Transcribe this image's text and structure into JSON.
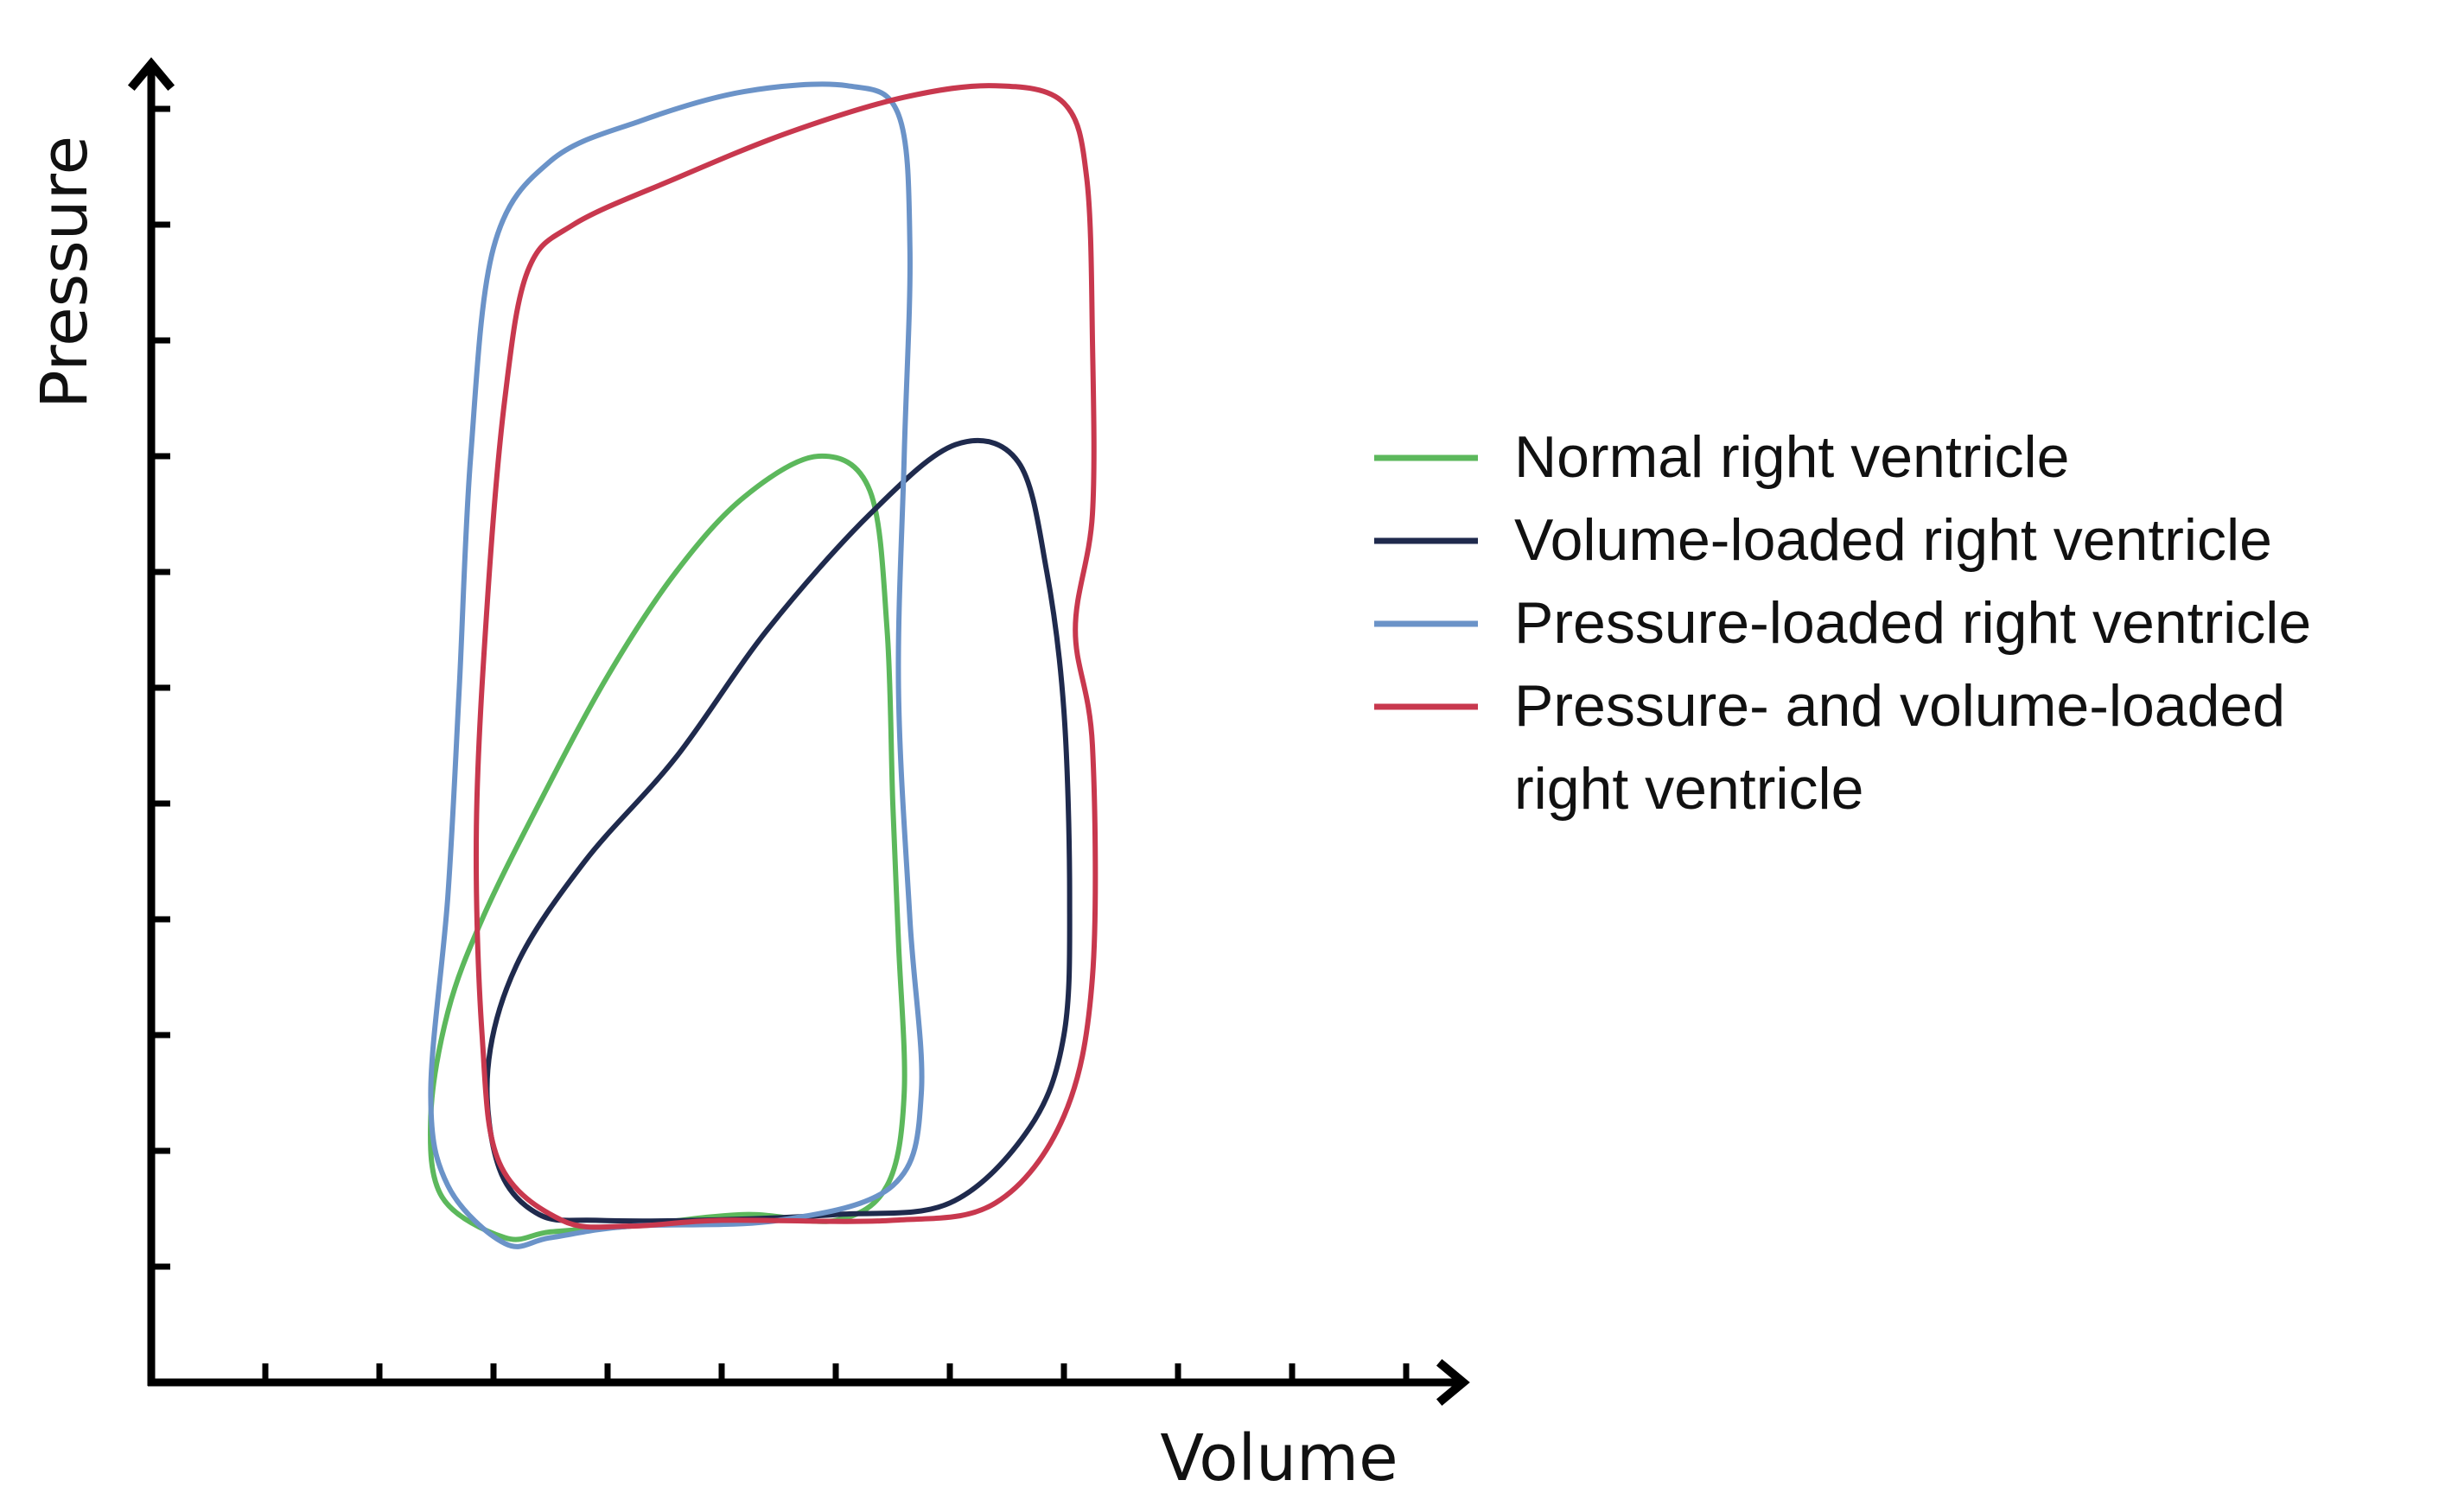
{
  "chart_data": {
    "type": "line",
    "title": "",
    "xlabel": "Volume",
    "ylabel": "Pressure",
    "xlim": [
      0,
      11
    ],
    "ylim": [
      0,
      11
    ],
    "x_ticks": 11,
    "y_ticks": 11,
    "tick_labels": false,
    "grid": false,
    "legend_position": "right",
    "series": [
      {
        "name": "Normal right ventricle",
        "color": "#5cb85c",
        "closed": true,
        "points": [
          [
            3.1,
            1.25
          ],
          [
            2.55,
            1.6
          ],
          [
            2.45,
            2.3
          ],
          [
            2.6,
            3.2
          ],
          [
            2.9,
            4.0
          ],
          [
            3.4,
            5.0
          ],
          [
            4.0,
            6.1
          ],
          [
            4.6,
            7.0
          ],
          [
            5.2,
            7.65
          ],
          [
            5.85,
            8.0
          ],
          [
            6.3,
            7.7
          ],
          [
            6.45,
            6.5
          ],
          [
            6.5,
            5.0
          ],
          [
            6.55,
            3.8
          ],
          [
            6.6,
            2.5
          ],
          [
            6.45,
            1.7
          ],
          [
            6.0,
            1.4
          ],
          [
            5.2,
            1.45
          ],
          [
            4.2,
            1.35
          ],
          [
            3.5,
            1.3
          ]
        ]
      },
      {
        "name": "Volume-loaded right ventricle",
        "color": "#1f2a4d",
        "closed": true,
        "points": [
          [
            3.4,
            1.45
          ],
          [
            3.05,
            1.85
          ],
          [
            2.95,
            2.7
          ],
          [
            3.2,
            3.6
          ],
          [
            3.8,
            4.5
          ],
          [
            4.6,
            5.4
          ],
          [
            5.4,
            6.5
          ],
          [
            6.3,
            7.5
          ],
          [
            7.05,
            8.1
          ],
          [
            7.6,
            7.95
          ],
          [
            7.85,
            7.0
          ],
          [
            8.0,
            5.8
          ],
          [
            8.05,
            4.2
          ],
          [
            8.0,
            3.0
          ],
          [
            7.7,
            2.2
          ],
          [
            7.0,
            1.55
          ],
          [
            6.0,
            1.45
          ],
          [
            4.8,
            1.4
          ],
          [
            3.9,
            1.4
          ]
        ]
      },
      {
        "name": "Pressure-loaded right ventricle",
        "color": "#6b93c8",
        "closed": true,
        "points": [
          [
            3.1,
            1.2
          ],
          [
            2.6,
            1.7
          ],
          [
            2.45,
            2.5
          ],
          [
            2.6,
            4.2
          ],
          [
            2.7,
            6.0
          ],
          [
            2.8,
            8.0
          ],
          [
            3.0,
            9.8
          ],
          [
            3.5,
            10.55
          ],
          [
            4.3,
            10.9
          ],
          [
            5.2,
            11.15
          ],
          [
            6.1,
            11.2
          ],
          [
            6.55,
            10.95
          ],
          [
            6.65,
            9.8
          ],
          [
            6.6,
            8.0
          ],
          [
            6.55,
            6.0
          ],
          [
            6.65,
            4.0
          ],
          [
            6.75,
            2.5
          ],
          [
            6.5,
            1.7
          ],
          [
            5.5,
            1.4
          ],
          [
            4.2,
            1.35
          ],
          [
            3.5,
            1.25
          ]
        ]
      },
      {
        "name": "Pressure- and volume-loaded right ventricle",
        "color": "#c8384e",
        "closed": true,
        "points": [
          [
            3.6,
            1.4
          ],
          [
            3.05,
            1.9
          ],
          [
            2.9,
            3.0
          ],
          [
            2.85,
            4.8
          ],
          [
            2.95,
            6.8
          ],
          [
            3.1,
            8.5
          ],
          [
            3.3,
            9.6
          ],
          [
            3.7,
            10.0
          ],
          [
            4.6,
            10.4
          ],
          [
            5.6,
            10.8
          ],
          [
            6.6,
            11.1
          ],
          [
            7.4,
            11.2
          ],
          [
            8.0,
            11.05
          ],
          [
            8.2,
            10.4
          ],
          [
            8.25,
            9.0
          ],
          [
            8.25,
            7.5
          ],
          [
            8.1,
            6.5
          ],
          [
            8.25,
            5.5
          ],
          [
            8.25,
            3.5
          ],
          [
            8.0,
            2.3
          ],
          [
            7.4,
            1.55
          ],
          [
            6.5,
            1.4
          ],
          [
            5.0,
            1.4
          ],
          [
            4.2,
            1.35
          ]
        ]
      }
    ]
  },
  "legend": {
    "items": [
      {
        "lines": [
          "Normal right ventricle"
        ],
        "color": "#5cb85c"
      },
      {
        "lines": [
          "Volume-loaded right ventricle"
        ],
        "color": "#1f2a4d"
      },
      {
        "lines": [
          "Pressure-loaded right ventricle"
        ],
        "color": "#6b93c8"
      },
      {
        "lines": [
          "Pressure- and volume-loaded",
          "right ventricle"
        ],
        "color": "#c8384e"
      }
    ]
  }
}
